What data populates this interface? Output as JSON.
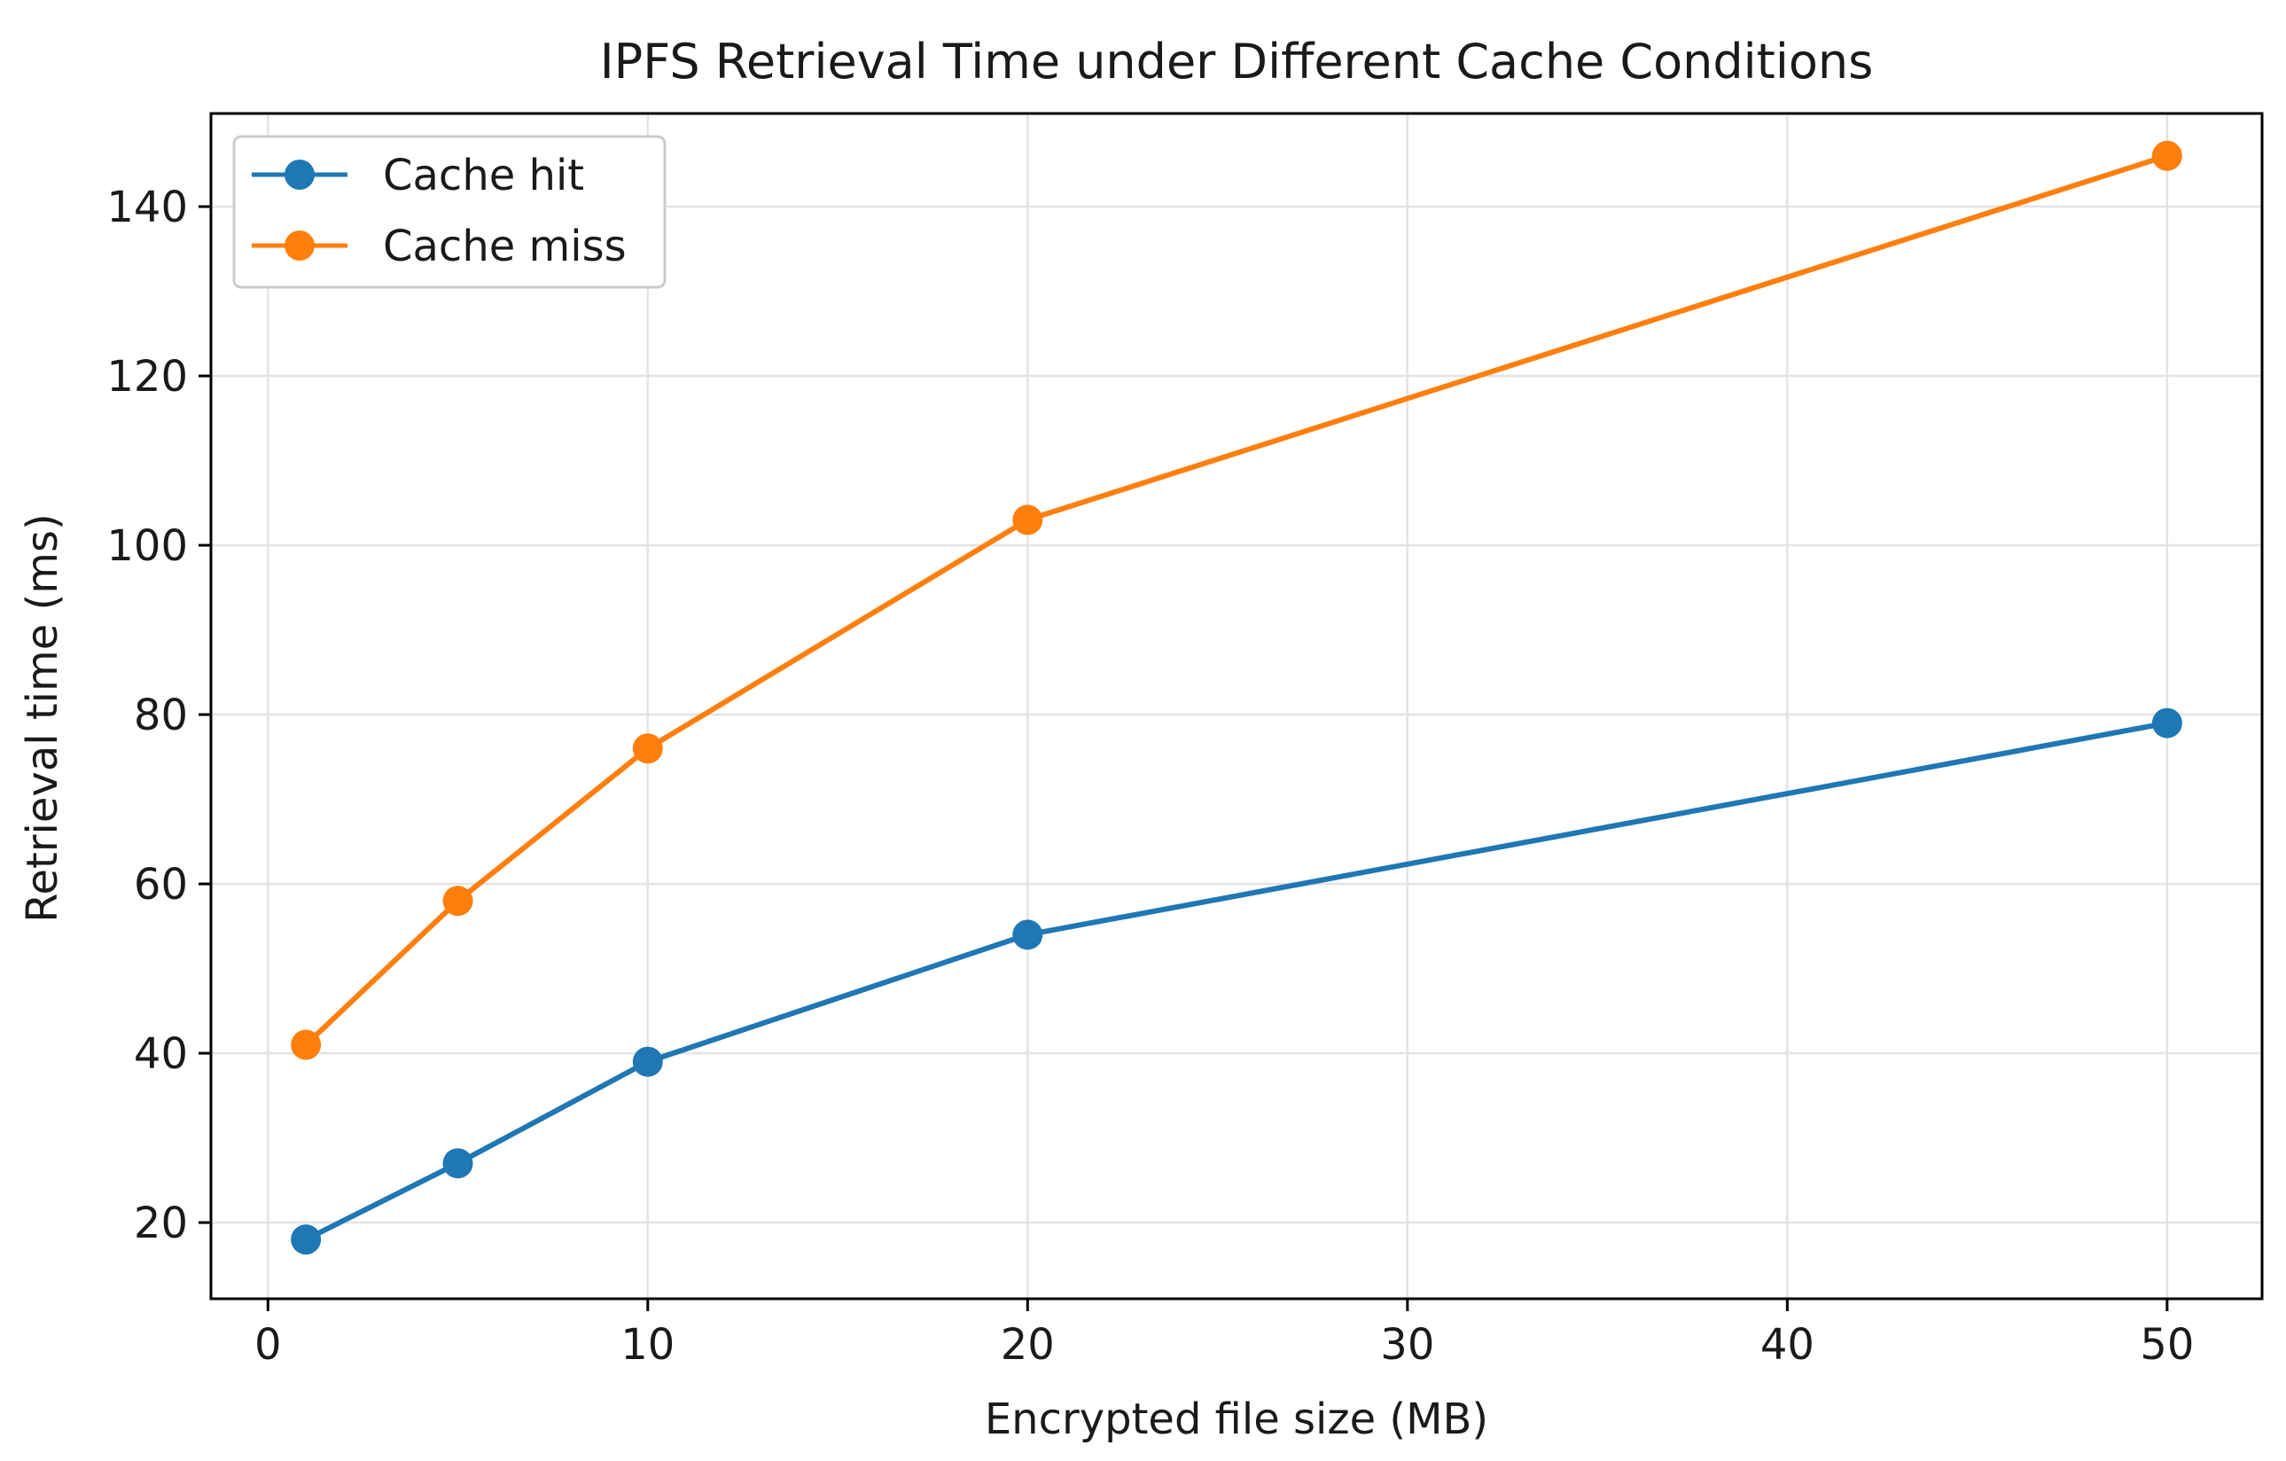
{
  "chart_data": {
    "type": "line",
    "title": "IPFS Retrieval Time under Different Cache Conditions",
    "xlabel": "Encrypted file size (MB)",
    "ylabel": "Retrieval time (ms)",
    "x": [
      1,
      5,
      10,
      20,
      50
    ],
    "xlim": [
      -1.5,
      52.5
    ],
    "ylim": [
      11,
      151
    ],
    "xticks": [
      0,
      10,
      20,
      30,
      40,
      50
    ],
    "yticks": [
      20,
      40,
      60,
      80,
      100,
      120,
      140
    ],
    "grid": true,
    "legend_position": "upper left",
    "series": [
      {
        "name": "Cache hit",
        "color": "#1f77b4",
        "values": [
          18,
          27,
          39,
          54,
          79
        ]
      },
      {
        "name": "Cache miss",
        "color": "#ff7f0e",
        "values": [
          41,
          58,
          76,
          103,
          146
        ]
      }
    ]
  }
}
